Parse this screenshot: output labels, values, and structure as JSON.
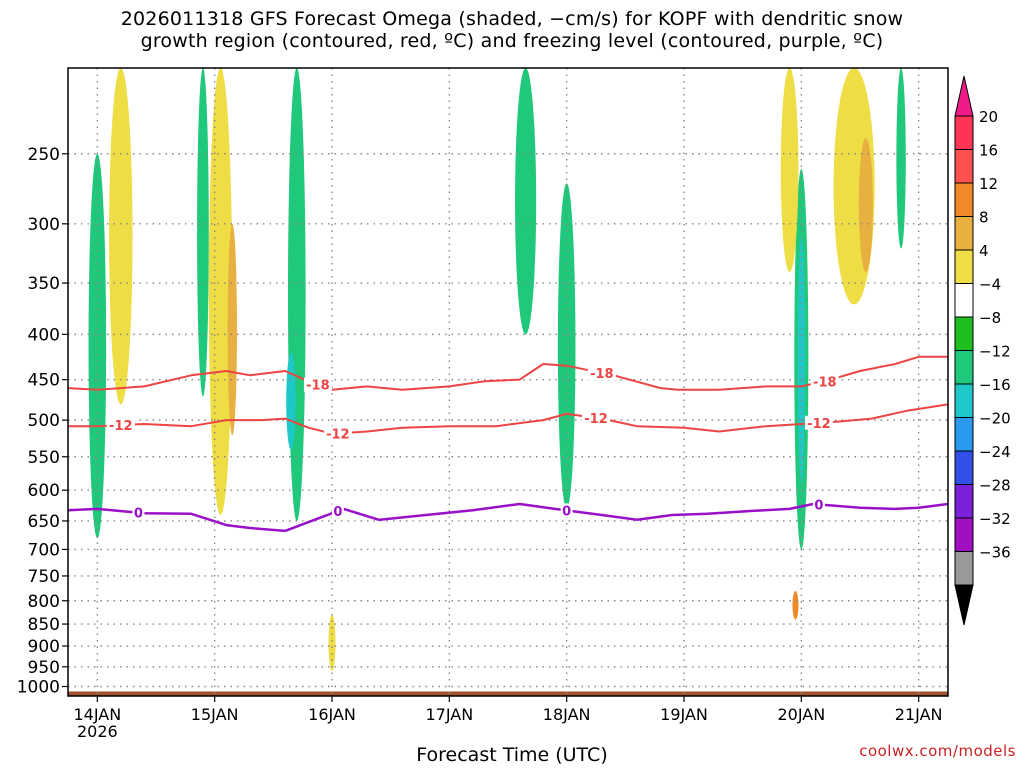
{
  "title": {
    "line1": "2026011318 GFS Forecast Omega (shaded, −cm/s) for KOPF with dendritic snow",
    "line2": "growth region (contoured, red, ºC) and freezing level (contoured, purple, ºC)"
  },
  "credit": "coolwx.com/models",
  "chart_data": {
    "type": "heatmap",
    "title": "2026011318 GFS Forecast Omega (shaded, −cm/s) for KOPF with dendritic snow growth region (contoured, red, ºC) and freezing level (contoured, purple, ºC)",
    "xlabel": "Forecast Time (UTC)",
    "ylabel": "",
    "x_ticks": [
      "14JAN",
      "15JAN",
      "16JAN",
      "17JAN",
      "18JAN",
      "19JAN",
      "20JAN",
      "21JAN"
    ],
    "x_tick_sublabel": "2026",
    "x_range_days": [
      -0.25,
      7.25
    ],
    "y_ticks": [
      250,
      300,
      350,
      400,
      450,
      500,
      550,
      600,
      650,
      700,
      750,
      800,
      850,
      900,
      950,
      1000
    ],
    "y_range_hpa": [
      200,
      1025
    ],
    "grid": true,
    "colorbar": {
      "labels": [
        "20",
        "16",
        "12",
        "8",
        "4",
        "−4",
        "−8",
        "−12",
        "−16",
        "−20",
        "−24",
        "−28",
        "−32",
        "−36"
      ],
      "colors": [
        "#ff3355",
        "#ff5050",
        "#f08a28",
        "#e8b040",
        "#eedd44",
        "#ffffff",
        "#1fbf1f",
        "#1fc87a",
        "#1fc8c8",
        "#2a9af0",
        "#3050e8",
        "#7a20d8",
        "#a010c0",
        "#9a9a9a"
      ],
      "top_arrow_color": "#ee1a8a",
      "bottom_arrow_color": "#000000"
    },
    "contours": {
      "minus18": {
        "label": "-18",
        "color": "#ee4444",
        "times": [
          -0.25,
          0.0,
          0.4,
          0.8,
          1.1,
          1.3,
          1.6,
          1.8,
          2.0,
          2.3,
          2.6,
          3.0,
          3.3,
          3.6,
          3.8,
          4.0,
          4.4,
          4.8,
          4.95,
          5.3,
          5.7,
          6.0,
          6.2,
          6.5,
          6.8,
          7.0,
          7.25
        ],
        "hpa": [
          460,
          462,
          458,
          445,
          440,
          445,
          440,
          452,
          462,
          458,
          462,
          458,
          452,
          450,
          432,
          434,
          445,
          460,
          462,
          462,
          458,
          458,
          452,
          440,
          432,
          424,
          424
        ]
      },
      "minus12": {
        "label": "-12",
        "color": "#ee4444",
        "times": [
          -0.25,
          0.0,
          0.4,
          0.8,
          1.1,
          1.4,
          1.6,
          1.8,
          2.0,
          2.3,
          2.6,
          3.0,
          3.4,
          3.8,
          4.0,
          4.3,
          4.6,
          5.0,
          5.3,
          5.7,
          6.0,
          6.3,
          6.6,
          6.9,
          7.25
        ],
        "hpa": [
          508,
          508,
          505,
          508,
          500,
          500,
          498,
          510,
          518,
          515,
          510,
          508,
          508,
          500,
          492,
          498,
          508,
          510,
          515,
          508,
          505,
          502,
          498,
          488,
          480
        ]
      },
      "freezing": {
        "label": "0",
        "color": "#9a10c8",
        "times": [
          -0.25,
          0.0,
          0.4,
          0.8,
          1.1,
          1.3,
          1.6,
          1.8,
          2.1,
          2.4,
          2.8,
          3.2,
          3.6,
          3.9,
          4.3,
          4.6,
          4.9,
          5.2,
          5.6,
          5.9,
          6.1,
          6.5,
          6.8,
          7.0,
          7.25
        ],
        "hpa": [
          632,
          630,
          637,
          638,
          657,
          662,
          667,
          652,
          630,
          648,
          640,
          632,
          622,
          630,
          640,
          648,
          640,
          638,
          633,
          630,
          622,
          628,
          630,
          628,
          622
        ]
      }
    },
    "omega_features": [
      {
        "time": 0.0,
        "p_top": 250,
        "p_bottom": 680,
        "value": -8,
        "width_days": 0.15
      },
      {
        "time": 0.2,
        "p_top": 200,
        "p_bottom": 480,
        "value": 6,
        "width_days": 0.2
      },
      {
        "time": 1.05,
        "p_top": 200,
        "p_bottom": 640,
        "value": 6,
        "width_days": 0.2
      },
      {
        "time": 1.15,
        "p_top": 300,
        "p_bottom": 520,
        "value": 10,
        "width_days": 0.08
      },
      {
        "time": 0.9,
        "p_top": 200,
        "p_bottom": 470,
        "value": -8,
        "width_days": 0.1
      },
      {
        "time": 1.7,
        "p_top": 200,
        "p_bottom": 650,
        "value": -8,
        "width_days": 0.15
      },
      {
        "time": 1.65,
        "p_top": 420,
        "p_bottom": 540,
        "value": -12,
        "width_days": 0.08
      },
      {
        "time": 4.0,
        "p_top": 270,
        "p_bottom": 630,
        "value": -8,
        "width_days": 0.15
      },
      {
        "time": 3.65,
        "p_top": 200,
        "p_bottom": 400,
        "value": -8,
        "width_days": 0.18
      },
      {
        "time": 6.0,
        "p_top": 260,
        "p_bottom": 700,
        "value": -8,
        "width_days": 0.12
      },
      {
        "time": 6.0,
        "p_top": 310,
        "p_bottom": 590,
        "value": -12,
        "width_days": 0.06
      },
      {
        "time": 5.9,
        "p_top": 200,
        "p_bottom": 340,
        "value": 6,
        "width_days": 0.15
      },
      {
        "time": 6.45,
        "p_top": 200,
        "p_bottom": 370,
        "value": 6,
        "width_days": 0.35
      },
      {
        "time": 6.55,
        "p_top": 240,
        "p_bottom": 340,
        "value": 10,
        "width_days": 0.12
      },
      {
        "time": 6.85,
        "p_top": 200,
        "p_bottom": 320,
        "value": -8,
        "width_days": 0.08
      },
      {
        "time": 2.0,
        "p_top": 830,
        "p_bottom": 960,
        "value": 6,
        "width_days": 0.06
      },
      {
        "time": 5.95,
        "p_top": 780,
        "p_bottom": 840,
        "value": 12,
        "width_days": 0.05
      }
    ],
    "surface_color": "#a0522d"
  }
}
